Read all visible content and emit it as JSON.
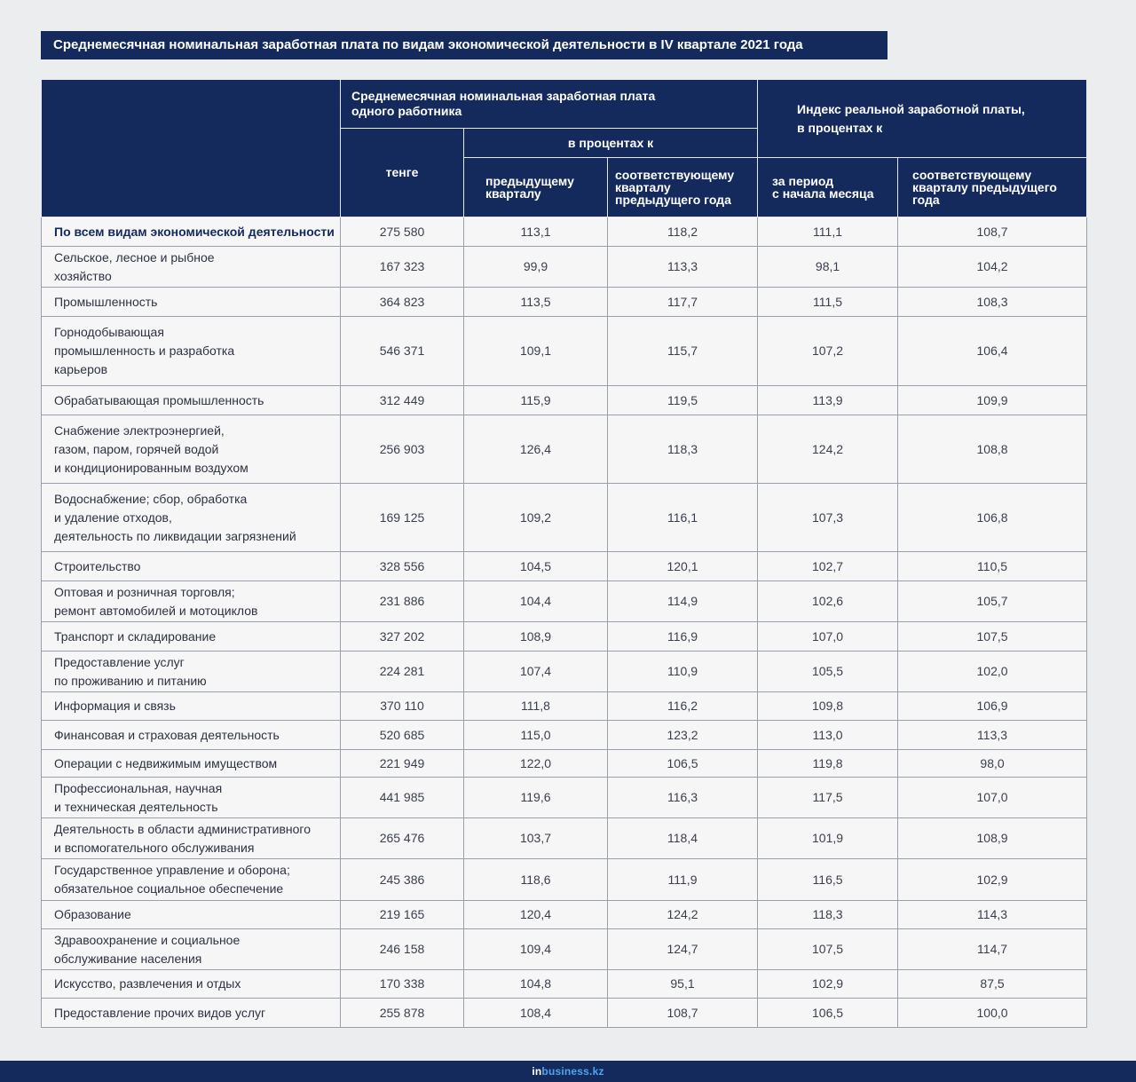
{
  "title": "Среднемесячная номинальная заработная плата по видам экономической деятельности в IV квартале 2021 года",
  "header": {
    "group_nominal": "Среднемесячная номинальная заработная плата\nодного работника",
    "group_real_index": "Индекс реальной заработной платы,\nв процентах к",
    "col_tenge": "тенге",
    "subgroup_percent": "в процентах к",
    "col_prev_quarter": "предыдущему\nкварталу",
    "col_same_quarter_prev_year": "соответствующему\nкварталу\nпредыдущего года",
    "col_period_from_start": "за период\nс начала месяца",
    "col_real_same_quarter": "соответствующему\nкварталу предыдущего\nгода"
  },
  "rows": [
    {
      "name": "По всем видам экономической деятельности",
      "tenge": "275 580",
      "prev_q": "113,1",
      "same_q": "118,2",
      "period": "111,1",
      "real_same_q": "108,7"
    },
    {
      "name": "Сельское, лесное и рыбное\nхозяйство",
      "tenge": "167 323",
      "prev_q": "99,9",
      "same_q": "113,3",
      "period": "98,1",
      "real_same_q": "104,2"
    },
    {
      "name": "Промышленность",
      "tenge": "364 823",
      "prev_q": "113,5",
      "same_q": "117,7",
      "period": "111,5",
      "real_same_q": "108,3"
    },
    {
      "name": "Горнодобывающая\nпромышленность и разработка\nкарьеров",
      "tenge": "546 371",
      "prev_q": "109,1",
      "same_q": "115,7",
      "period": "107,2",
      "real_same_q": "106,4"
    },
    {
      "name": "Обрабатывающая промышленность",
      "tenge": "312 449",
      "prev_q": "115,9",
      "same_q": "119,5",
      "period": "113,9",
      "real_same_q": "109,9"
    },
    {
      "name": "Снабжение электроэнергией,\nгазом, паром, горячей водой\nи кондиционированным воздухом",
      "tenge": "256 903",
      "prev_q": "126,4",
      "same_q": "118,3",
      "period": "124,2",
      "real_same_q": "108,8"
    },
    {
      "name": "Водоснабжение; сбор, обработка\nи удаление отходов,\nдеятельность по ликвидации загрязнений",
      "tenge": "169 125",
      "prev_q": "109,2",
      "same_q": "116,1",
      "period": "107,3",
      "real_same_q": "106,8"
    },
    {
      "name": "Строительство",
      "tenge": "328 556",
      "prev_q": "104,5",
      "same_q": "120,1",
      "period": "102,7",
      "real_same_q": "110,5"
    },
    {
      "name": "Оптовая и розничная торговля;\nремонт автомобилей и мотоциклов",
      "tenge": "231 886",
      "prev_q": "104,4",
      "same_q": "114,9",
      "period": "102,6",
      "real_same_q": "105,7"
    },
    {
      "name": "Транспорт и складирование",
      "tenge": "327 202",
      "prev_q": "108,9",
      "same_q": "116,9",
      "period": "107,0",
      "real_same_q": "107,5"
    },
    {
      "name": "Предоставление услуг\nпо проживанию и питанию",
      "tenge": "224 281",
      "prev_q": "107,4",
      "same_q": "110,9",
      "period": "105,5",
      "real_same_q": "102,0"
    },
    {
      "name": "Информация и связь",
      "tenge": "370 110",
      "prev_q": "111,8",
      "same_q": "116,2",
      "period": "109,8",
      "real_same_q": "106,9"
    },
    {
      "name": "Финансовая и страховая деятельность",
      "tenge": "520 685",
      "prev_q": "115,0",
      "same_q": "123,2",
      "period": "113,0",
      "real_same_q": "113,3"
    },
    {
      "name": "Операции с недвижимым имуществом",
      "tenge": "221 949",
      "prev_q": "122,0",
      "same_q": "106,5",
      "period": "119,8",
      "real_same_q": "98,0"
    },
    {
      "name": "Профессиональная, научная\nи техническая деятельность",
      "tenge": "441 985",
      "prev_q": "119,6",
      "same_q": "116,3",
      "period": "117,5",
      "real_same_q": "107,0"
    },
    {
      "name": "Деятельность в области административного\nи вспомогательного обслуживания",
      "tenge": "265 476",
      "prev_q": "103,7",
      "same_q": "118,4",
      "period": "101,9",
      "real_same_q": "108,9"
    },
    {
      "name": "Государственное управление и оборона;\nобязательное социальное обеспечение",
      "tenge": "245 386",
      "prev_q": "118,6",
      "same_q": "111,9",
      "period": "116,5",
      "real_same_q": "102,9"
    },
    {
      "name": "Образование",
      "tenge": "219 165",
      "prev_q": "120,4",
      "same_q": "124,2",
      "period": "118,3",
      "real_same_q": "114,3"
    },
    {
      "name": "Здравоохранение и социальное\nобслуживание населения",
      "tenge": "246 158",
      "prev_q": "109,4",
      "same_q": "124,7",
      "period": "107,5",
      "real_same_q": "114,7"
    },
    {
      "name": "Искусство, развлечения и отдых",
      "tenge": "170 338",
      "prev_q": "104,8",
      "same_q": "95,1",
      "period": "102,9",
      "real_same_q": "87,5"
    },
    {
      "name": "Предоставление прочих видов услуг",
      "tenge": "255 878",
      "prev_q": "108,4",
      "same_q": "108,7",
      "period": "106,5",
      "real_same_q": "100,0"
    }
  ],
  "footer": {
    "logo_prefix": "in",
    "logo_rest": "business.kz"
  },
  "colors": {
    "navy": "#142a5c",
    "background": "#ecedef",
    "cell": "#f6f6f7",
    "logo_accent": "#4fa3f0"
  }
}
